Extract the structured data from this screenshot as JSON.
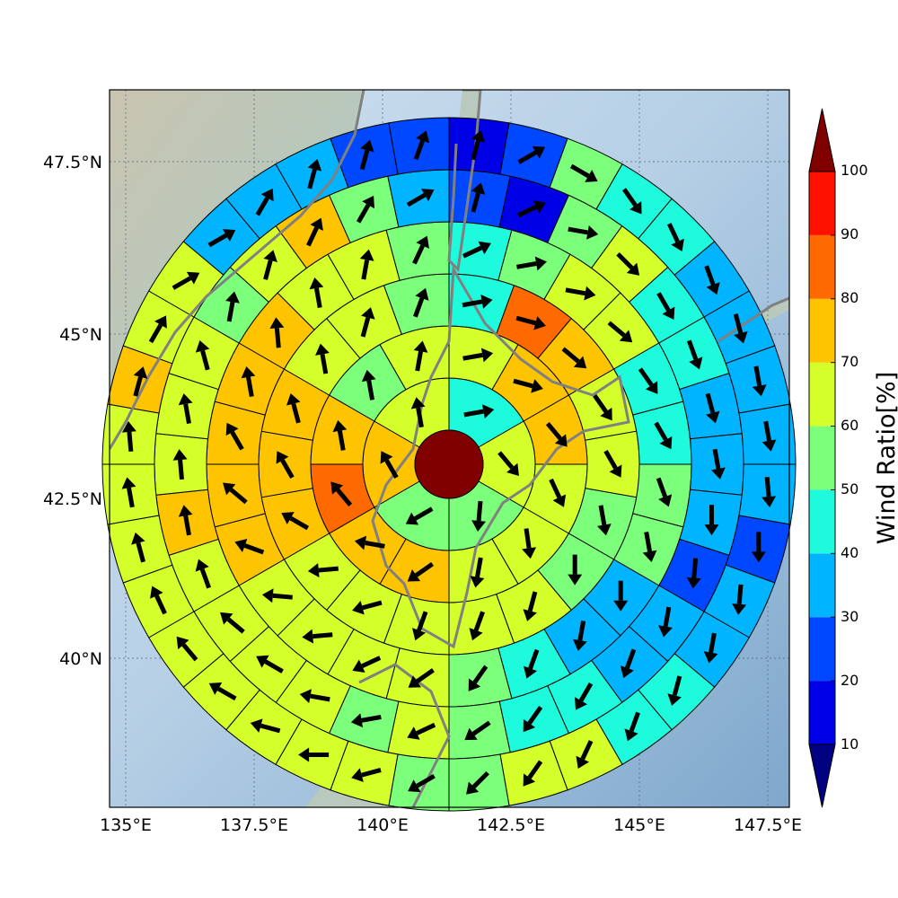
{
  "map": {
    "lon_ticks": [
      "135°E",
      "137.5°E",
      "140°E",
      "142.5°E",
      "145°E",
      "147.5°E"
    ],
    "lat_ticks": [
      "47.5°N",
      "45°N",
      "42.5°N",
      "40°N"
    ],
    "extent": {
      "lon": [
        134.7,
        148.9
      ],
      "lat": [
        37.4,
        48.6
      ]
    },
    "center": {
      "lon": 141.7,
      "lat": 43.1
    }
  },
  "colorbar": {
    "label": "Wind Ratio[%]",
    "ticks": [
      "10",
      "20",
      "30",
      "40",
      "50",
      "60",
      "70",
      "80",
      "90",
      "100"
    ],
    "levels": [
      0,
      10,
      20,
      30,
      40,
      50,
      60,
      70,
      80,
      90,
      100
    ],
    "colors": [
      "#000080",
      "#0000e6",
      "#0048ff",
      "#00b4ff",
      "#1efadc",
      "#7cff7a",
      "#d4ff2a",
      "#ffc400",
      "#ff6a00",
      "#ff1100",
      "#800000"
    ]
  },
  "chart_data": {
    "type": "heatmap",
    "ylabel": "Wind Ratio[%]",
    "rings": [
      {
        "ring": 1,
        "sectors": 6,
        "values": [
          45,
          65,
          55,
          55,
          70,
          65
        ],
        "arrow_deg": [
          80,
          140,
          185,
          240,
          330,
          350
        ]
      },
      {
        "ring": 2,
        "sectors": 12,
        "values": [
          65,
          75,
          75,
          65,
          65,
          65,
          75,
          75,
          85,
          75,
          55,
          65
        ],
        "arrow_deg": [
          80,
          105,
          140,
          155,
          172,
          190,
          235,
          280,
          320,
          350,
          350,
          10
        ]
      },
      {
        "ring": 3,
        "sectors": 18,
        "values": [
          45,
          85,
          75,
          65,
          65,
          55,
          55,
          65,
          65,
          65,
          65,
          65,
          75,
          75,
          75,
          65,
          65,
          55
        ],
        "arrow_deg": [
          80,
          105,
          130,
          145,
          150,
          170,
          180,
          195,
          200,
          200,
          255,
          265,
          300,
          330,
          345,
          350,
          15,
          20
        ]
      },
      {
        "ring": 4,
        "sectors": 24,
        "values": [
          45,
          55,
          65,
          65,
          45,
          45,
          55,
          55,
          35,
          35,
          45,
          55,
          65,
          65,
          65,
          65,
          75,
          75,
          75,
          75,
          75,
          65,
          65,
          55
        ],
        "arrow_deg": [
          65,
          80,
          100,
          130,
          145,
          150,
          160,
          170,
          180,
          190,
          200,
          215,
          235,
          245,
          265,
          275,
          290,
          310,
          330,
          350,
          355,
          350,
          10,
          25
        ]
      },
      {
        "ring": 5,
        "sectors": 30,
        "values": [
          25,
          15,
          55,
          65,
          45,
          45,
          35,
          35,
          35,
          25,
          35,
          35,
          45,
          45,
          55,
          65,
          55,
          65,
          65,
          65,
          65,
          75,
          65,
          65,
          65,
          55,
          65,
          75,
          55,
          35
        ],
        "arrow_deg": [
          15,
          65,
          100,
          135,
          150,
          160,
          165,
          170,
          180,
          185,
          190,
          200,
          210,
          215,
          235,
          245,
          260,
          280,
          300,
          310,
          340,
          350,
          355,
          350,
          345,
          10,
          15,
          25,
          30,
          60
        ]
      },
      {
        "ring": 6,
        "sectors": 36,
        "values": [
          15,
          25,
          55,
          45,
          45,
          35,
          35,
          35,
          35,
          35,
          25,
          35,
          35,
          45,
          45,
          65,
          65,
          55,
          55,
          65,
          65,
          65,
          65,
          65,
          65,
          65,
          65,
          65,
          75,
          65,
          65,
          35,
          35,
          35,
          25,
          25
        ],
        "arrow_deg": [
          15,
          60,
          120,
          145,
          155,
          160,
          165,
          170,
          170,
          175,
          180,
          185,
          190,
          195,
          200,
          205,
          215,
          225,
          240,
          255,
          270,
          285,
          300,
          320,
          335,
          345,
          350,
          355,
          15,
          30,
          60,
          60,
          30,
          15,
          15,
          20
        ]
      }
    ]
  }
}
